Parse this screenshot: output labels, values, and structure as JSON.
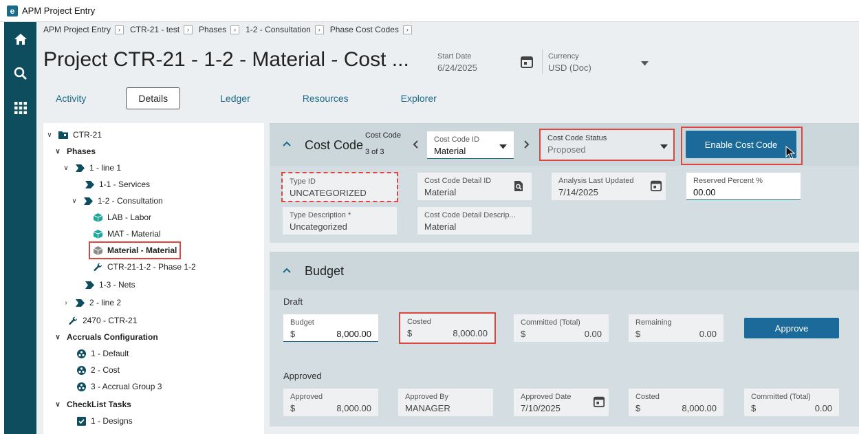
{
  "window": {
    "title": "APM Project Entry",
    "logo": "e"
  },
  "nav": [
    {
      "icon": "home-icon"
    },
    {
      "icon": "search-icon"
    },
    {
      "icon": "apps-grid-icon"
    }
  ],
  "breadcrumb": [
    "APM Project Entry",
    "CTR-21 - test",
    "Phases",
    "1-2 - Consultation",
    "Phase Cost Codes"
  ],
  "page_title": "Project CTR-21 - 1-2 - Material - Cost ...",
  "header": {
    "start_date_label": "Start Date",
    "start_date_value": "6/24/2025",
    "currency_label": "Currency",
    "currency_value": "USD (Doc)"
  },
  "tabs": [
    "Activity",
    "Details",
    "Ledger",
    "Resources",
    "Explorer"
  ],
  "tree": [
    {
      "label": "CTR-21",
      "icon": "folder-icon",
      "expand": "v"
    },
    {
      "label": "Phases",
      "bold": true,
      "expand": "v"
    },
    {
      "label": "1 - line 1",
      "icon": "phase-icon",
      "expand": "v"
    },
    {
      "label": "1-1 - Services",
      "icon": "phase-icon"
    },
    {
      "label": "1-2 - Consultation",
      "icon": "phase-icon",
      "expand": "v"
    },
    {
      "label": "LAB - Labor",
      "icon": "cost-cube-icon"
    },
    {
      "label": "MAT - Material",
      "icon": "cost-cube-icon"
    },
    {
      "label": "Material - Material",
      "icon": "cost-cube-gray-icon",
      "bold": true,
      "selected": true
    },
    {
      "label": "CTR-21-1-2 - Phase 1-2",
      "icon": "wrench-icon"
    },
    {
      "label": "1-3 - Nets",
      "icon": "phase-icon"
    },
    {
      "label": "2 - line 2",
      "icon": "phase-icon",
      "expand": ">"
    },
    {
      "label": "2470 - CTR-21",
      "icon": "wrench-icon"
    },
    {
      "label": "Accruals Configuration",
      "bold": true,
      "expand": "v"
    },
    {
      "label": "1 - Default",
      "icon": "accrual-icon"
    },
    {
      "label": "2 - Cost",
      "icon": "accrual-icon"
    },
    {
      "label": "3 - Accrual Group 3",
      "icon": "accrual-icon"
    },
    {
      "label": "CheckList Tasks",
      "bold": true,
      "expand": "v"
    },
    {
      "label": "1 - Designs",
      "icon": "checkbox-icon"
    }
  ],
  "cost_code": {
    "title": "Cost Code",
    "counter_label": "Cost Code",
    "counter_value": "3 of 3",
    "id_label": "Cost Code ID",
    "id_value": "Material",
    "status_label": "Cost Code Status",
    "status_value": "Proposed",
    "enable_button": "Enable Cost Code",
    "type_id_label": "Type ID",
    "type_id_value": "UNCATEGORIZED",
    "detail_id_label": "Cost Code Detail ID",
    "detail_id_value": "Material",
    "analysis_label": "Analysis Last Updated",
    "analysis_value": "7/14/2025",
    "reserved_label": "Reserved Percent %",
    "reserved_value": "00.00",
    "type_desc_label": "Type Description *",
    "type_desc_value": "Uncategorized",
    "detail_desc_label": "Cost Code Detail Descrip...",
    "detail_desc_value": "Material"
  },
  "budget": {
    "title": "Budget",
    "draft_label": "Draft",
    "approved_label": "Approved",
    "currency_symbol": "$",
    "draft": {
      "budget_label": "Budget",
      "budget_value": "8,000.00",
      "costed_label": "Costed",
      "costed_value": "8,000.00",
      "committed_label": "Committed (Total)",
      "committed_value": "0.00",
      "remaining_label": "Remaining",
      "remaining_value": "0.00"
    },
    "approve_button": "Approve",
    "approved": {
      "approved_label": "Approved",
      "approved_value": "8,000.00",
      "by_label": "Approved By",
      "by_value": "MANAGER",
      "date_label": "Approved Date",
      "date_value": "7/10/2025",
      "costed_label": "Costed",
      "costed_value": "8,000.00",
      "committed_label": "Committed (Total)",
      "committed_value": "0.00"
    }
  },
  "colors": {
    "accent": "#1b6a8a",
    "nav": "#0e4d5e",
    "highlight": "#e0443e",
    "button": "#1b6a9a"
  }
}
